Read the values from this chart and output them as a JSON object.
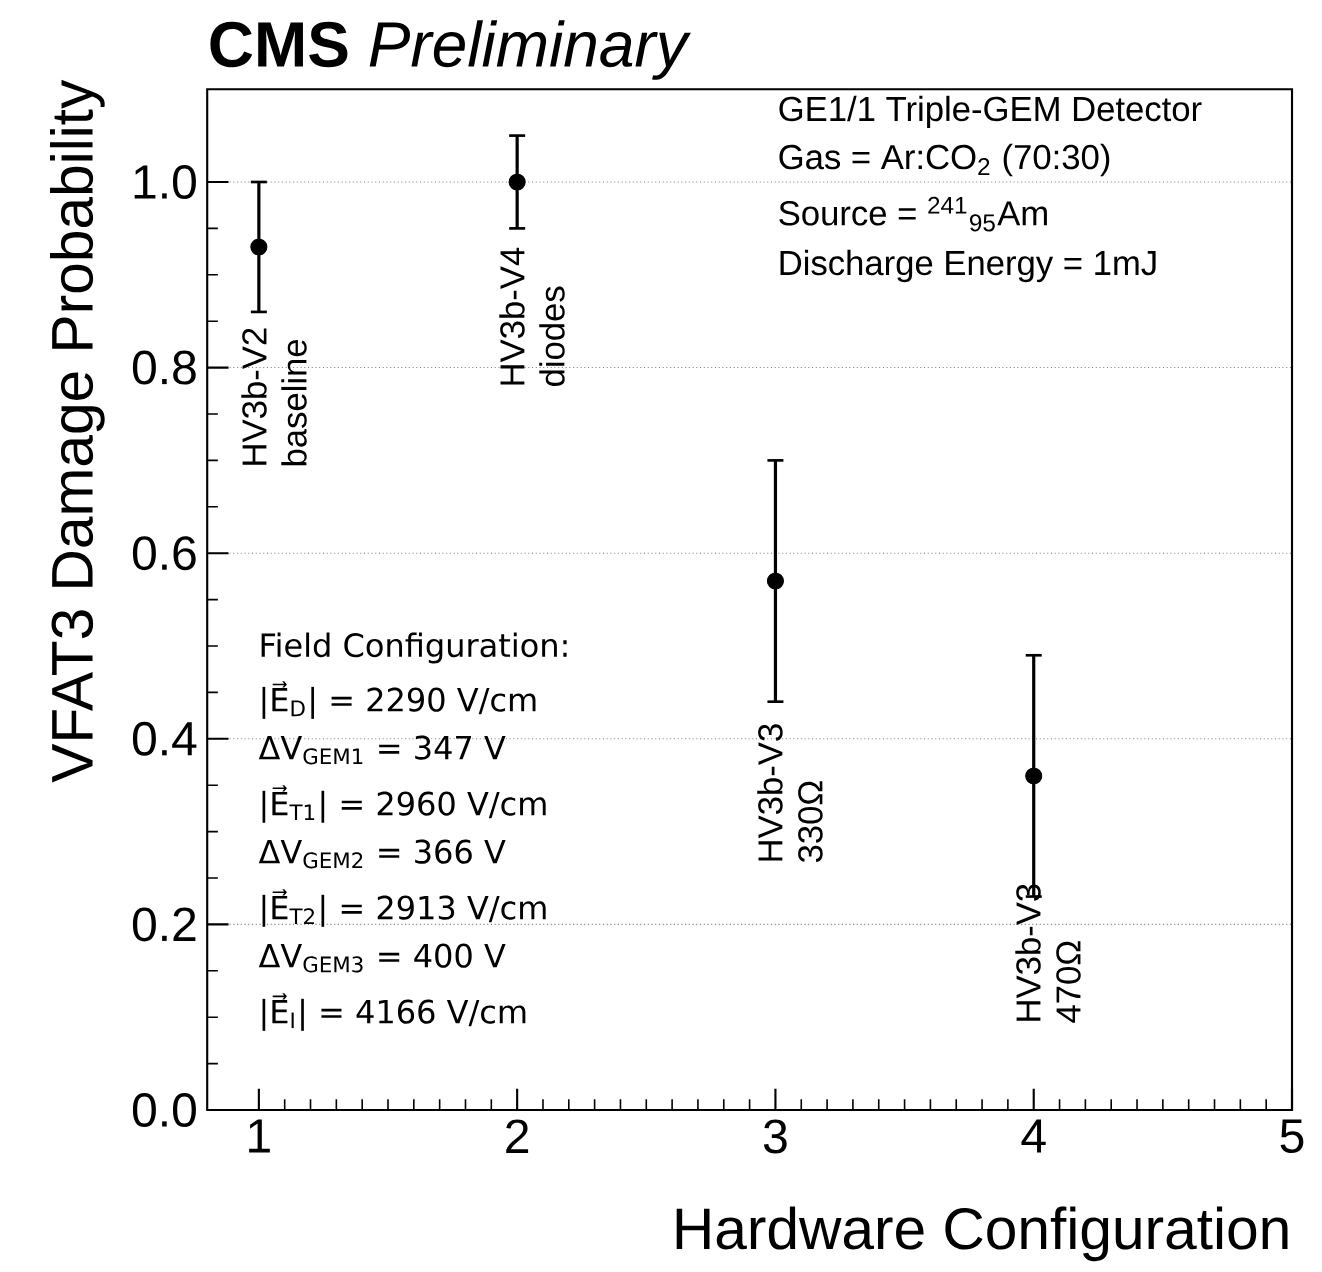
{
  "chart_data": {
    "type": "scatter",
    "title": "**CMS** *Preliminary*",
    "xlabel": "Hardware Configuration",
    "ylabel": "VFAT3 Damage Probability",
    "x": [
      1,
      2,
      3,
      4
    ],
    "values": [
      0.93,
      1.0,
      0.57,
      0.36
    ],
    "errors": [
      0.07,
      0.05,
      0.13,
      0.13
    ],
    "color": "#000000",
    "marker": "circle",
    "xlim": [
      0.8,
      5
    ],
    "ylim": [
      0,
      1.1
    ],
    "xticks": [
      1,
      2,
      3,
      4,
      5
    ],
    "yticks": [
      {
        "value": 0,
        "label": "0.0"
      },
      0.2,
      0.4,
      0.6,
      0.8,
      {
        "value": 1,
        "label": "1.0"
      }
    ],
    "grid": "y",
    "annotations": [
      "HV3b-V2 baseline",
      "HV3b-V4 diodes",
      "HV3b-V3 330Ω",
      "HV3b-V3 470Ω",
      "GE1/1 Triple-GEM Detector",
      "Gas = Ar:CO$_{2}$ (70:30)",
      "Source = $^{241}$$_{95}$Am",
      "Discharge Energy = 1mJ",
      "Field Configuration:",
      "|E⃗$_{D}$| = 2290 V/cm",
      "ΔV$_{GEM1}$ = 347 V",
      "|E⃗$_{T1}$| = 2960 V/cm",
      "ΔV$_{GEM2}$ = 366 V",
      "|E⃗$_{T2}$| = 2913 V/cm",
      "ΔV$_{GEM3}$ = 400 V",
      "|E⃗$_{I}$| = 4166 V/cm"
    ]
  }
}
